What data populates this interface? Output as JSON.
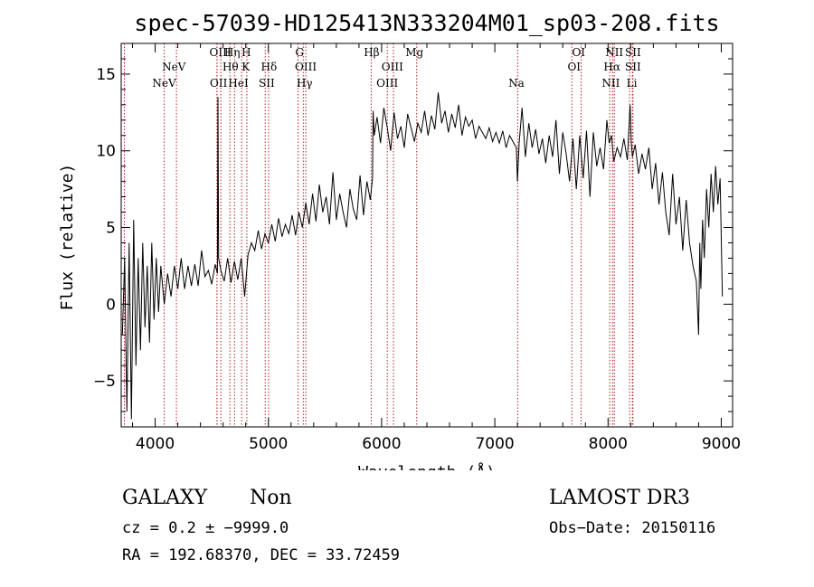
{
  "chart_data": {
    "type": "line",
    "title": "spec-57039-HD125413N333204M01_sp03-208.fits",
    "xlabel": "Wavelength (Å)",
    "ylabel": "Flux (relative)",
    "xlim": [
      3700,
      9100
    ],
    "ylim": [
      -8.0,
      17.0
    ],
    "xticks": [
      4000,
      5000,
      6000,
      7000,
      8000,
      9000
    ],
    "xtick_labels": [
      "4000",
      "5000",
      "6000",
      "7000",
      "8000",
      "9000"
    ],
    "yticks": [
      -5,
      0,
      5,
      10,
      15
    ],
    "ytick_labels": [
      "−5",
      "0",
      "5",
      "10",
      "15"
    ],
    "series": [
      {
        "name": "spectrum",
        "x": [
          3710,
          3730,
          3750,
          3770,
          3790,
          3810,
          3830,
          3850,
          3870,
          3890,
          3910,
          3930,
          3950,
          3970,
          3990,
          4010,
          4030,
          4050,
          4080,
          4110,
          4140,
          4170,
          4200,
          4230,
          4260,
          4290,
          4320,
          4350,
          4380,
          4410,
          4440,
          4470,
          4500,
          4530,
          4550,
          4555,
          4560,
          4580,
          4610,
          4640,
          4670,
          4700,
          4730,
          4760,
          4790,
          4820,
          4850,
          4880,
          4910,
          4940,
          4970,
          5000,
          5030,
          5060,
          5090,
          5120,
          5150,
          5180,
          5210,
          5240,
          5270,
          5300,
          5330,
          5360,
          5390,
          5420,
          5450,
          5480,
          5510,
          5540,
          5570,
          5600,
          5630,
          5660,
          5690,
          5720,
          5750,
          5780,
          5810,
          5840,
          5870,
          5900,
          5920,
          5925,
          5935,
          5960,
          5990,
          6020,
          6050,
          6080,
          6110,
          6140,
          6170,
          6200,
          6230,
          6260,
          6290,
          6320,
          6350,
          6380,
          6410,
          6440,
          6470,
          6500,
          6530,
          6560,
          6590,
          6620,
          6650,
          6680,
          6710,
          6740,
          6770,
          6800,
          6830,
          6860,
          6890,
          6920,
          6950,
          6980,
          7010,
          7040,
          7070,
          7100,
          7130,
          7160,
          7190,
          7200,
          7215,
          7240,
          7270,
          7300,
          7330,
          7360,
          7390,
          7420,
          7450,
          7480,
          7510,
          7540,
          7570,
          7600,
          7630,
          7660,
          7690,
          7720,
          7750,
          7780,
          7810,
          7840,
          7870,
          7900,
          7930,
          7960,
          7990,
          8010,
          8030,
          8050,
          8080,
          8110,
          8140,
          8170,
          8195,
          8205,
          8215,
          8240,
          8270,
          8300,
          8330,
          8360,
          8390,
          8420,
          8450,
          8480,
          8510,
          8540,
          8570,
          8600,
          8630,
          8660,
          8690,
          8720,
          8750,
          8780,
          8800,
          8810,
          8820,
          8835,
          8850,
          8870,
          8890,
          8910,
          8930,
          8950,
          8970,
          8990,
          9010
        ],
        "values": [
          -2.0,
          3.0,
          -7.0,
          4.0,
          -7.5,
          5.5,
          -4.0,
          3.0,
          -3.0,
          4.0,
          -1.5,
          2.5,
          -2.5,
          4.0,
          -1.0,
          3.0,
          -0.5,
          2.5,
          0.0,
          2.0,
          0.5,
          2.5,
          1.0,
          3.0,
          1.0,
          2.5,
          1.2,
          2.6,
          1.2,
          3.5,
          1.8,
          2.2,
          1.3,
          2.6,
          2.0,
          13.5,
          3.0,
          2.2,
          1.5,
          3.0,
          1.4,
          2.8,
          1.6,
          3.0,
          0.5,
          3.2,
          4.0,
          3.5,
          4.8,
          3.6,
          4.6,
          4.0,
          5.2,
          4.1,
          5.6,
          4.4,
          5.2,
          4.6,
          5.8,
          4.5,
          6.0,
          5.0,
          6.6,
          5.2,
          7.2,
          5.4,
          7.8,
          6.0,
          7.0,
          5.2,
          8.6,
          5.5,
          7.2,
          6.0,
          5.0,
          7.5,
          6.2,
          5.5,
          8.4,
          5.8,
          8.0,
          6.8,
          8.2,
          12.6,
          11.0,
          12.2,
          10.5,
          12.8,
          11.5,
          10.0,
          12.5,
          10.8,
          11.6,
          10.2,
          12.4,
          11.5,
          10.6,
          11.8,
          11.2,
          12.6,
          11.0,
          12.3,
          11.4,
          13.8,
          11.8,
          12.6,
          11.2,
          12.4,
          11.5,
          13.0,
          11.0,
          12.2,
          11.6,
          12.0,
          10.8,
          11.6,
          11.2,
          10.8,
          11.5,
          10.6,
          11.2,
          10.5,
          11.3,
          10.2,
          11.0,
          10.6,
          10.2,
          8.0,
          10.5,
          12.8,
          9.6,
          11.8,
          10.2,
          11.4,
          9.8,
          10.8,
          9.2,
          11.0,
          9.6,
          12.0,
          8.5,
          11.2,
          9.8,
          8.0,
          10.8,
          7.5,
          11.0,
          8.2,
          11.3,
          7.0,
          11.2,
          9.0,
          10.2,
          8.8,
          12.0,
          10.5,
          11.0,
          9.3,
          10.2,
          9.6,
          10.8,
          9.4,
          13.0,
          10.5,
          9.6,
          10.4,
          8.5,
          9.8,
          8.8,
          10.2,
          7.5,
          9.2,
          6.5,
          8.6,
          6.0,
          4.5,
          8.5,
          5.2,
          7.0,
          3.5,
          6.8,
          4.0,
          2.5,
          1.5,
          -2.0,
          4.0,
          1.0,
          5.5,
          3.0,
          7.5,
          5.0,
          8.5,
          6.0,
          9.0,
          6.5,
          8.2,
          0.5
        ]
      }
    ],
    "lines": [
      {
        "label": "NeV",
        "x": 3426,
        "label_x": 3426
      },
      {
        "label": "OII",
        "x": 3728,
        "label_x": 3728
      },
      {
        "label": "NeV",
        "x": 4080,
        "label_x": 4080
      },
      {
        "label": "NeV",
        "x": 4188,
        "label_x": 4188
      },
      {
        "label": "OII",
        "x": 4546,
        "label_x": 4546
      },
      {
        "label": "OIII",
        "x": 4546,
        "label_x": 4546
      },
      {
        "label": "Hθ",
        "x": 4580,
        "label_x": 4620
      },
      {
        "label": "Hη",
        "x": 4660,
        "label_x": 4660
      },
      {
        "label": "HeI",
        "x": 4701,
        "label_x": 4701
      },
      {
        "label": "H",
        "x": 4764,
        "label_x": 4800
      },
      {
        "label": "K",
        "x": 4810,
        "label_x": 4810
      },
      {
        "label": "SII",
        "x": 4972,
        "label_x": 4972
      },
      {
        "label": "Hδ",
        "x": 5002,
        "label_x": 5002
      },
      {
        "label": "G",
        "x": 5262,
        "label_x": 5262
      },
      {
        "label": "Hγ",
        "x": 5308,
        "label_x": 5308
      },
      {
        "label": "OIII",
        "x": 5330,
        "label_x": 5330
      },
      {
        "label": "Hβ",
        "x": 5908,
        "label_x": 5908
      },
      {
        "label": "OIII",
        "x": 6050,
        "label_x": 6050
      },
      {
        "label": "OIII",
        "x": 6105,
        "label_x": 6105
      },
      {
        "label": "Mg",
        "x": 6310,
        "label_x": 6310
      },
      {
        "label": "Na",
        "x": 7202,
        "label_x": 7202
      },
      {
        "label": "OI",
        "x": 7680,
        "label_x": 7680
      },
      {
        "label": "OI",
        "x": 7762,
        "label_x": 7762
      },
      {
        "label": "NII",
        "x": 8015,
        "label_x": 8015
      },
      {
        "label": "Hα",
        "x": 8040,
        "label_x": 8000
      },
      {
        "label": "NII",
        "x": 8055,
        "label_x": 8055
      },
      {
        "label": "SII",
        "x": 8190,
        "label_x": 8190
      },
      {
        "label": "SII",
        "x": 8215,
        "label_x": 8215
      },
      {
        "label": "Li",
        "x": 8220,
        "label_x": 8220
      }
    ],
    "line_labels": [
      {
        "text": "NeV",
        "x": 4080,
        "row": 3
      },
      {
        "text": "NeV",
        "x": 4165,
        "row": 2
      },
      {
        "text": "OII",
        "x": 4560,
        "row": 3
      },
      {
        "text": "OIII",
        "x": 4575,
        "row": 1
      },
      {
        "text": "Hθ",
        "x": 4665,
        "row": 2
      },
      {
        "text": "Hη",
        "x": 4680,
        "row": 1
      },
      {
        "text": "HeI",
        "x": 4735,
        "row": 3
      },
      {
        "text": "H",
        "x": 4805,
        "row": 1
      },
      {
        "text": "K",
        "x": 4800,
        "row": 2
      },
      {
        "text": "SII",
        "x": 4985,
        "row": 3
      },
      {
        "text": "Hδ",
        "x": 5005,
        "row": 2
      },
      {
        "text": "G",
        "x": 5275,
        "row": 1
      },
      {
        "text": "OIII",
        "x": 5330,
        "row": 2
      },
      {
        "text": "Hγ",
        "x": 5320,
        "row": 3
      },
      {
        "text": "Hβ",
        "x": 5912,
        "row": 1
      },
      {
        "text": "OIII",
        "x": 6095,
        "row": 2
      },
      {
        "text": "OIII",
        "x": 6050,
        "row": 3
      },
      {
        "text": "Mg",
        "x": 6290,
        "row": 1
      },
      {
        "text": "Na",
        "x": 7190,
        "row": 3
      },
      {
        "text": "OI",
        "x": 7740,
        "row": 1
      },
      {
        "text": "OI",
        "x": 7700,
        "row": 2
      },
      {
        "text": "NII",
        "x": 8055,
        "row": 1
      },
      {
        "text": "Hα",
        "x": 8035,
        "row": 2
      },
      {
        "text": "NII",
        "x": 8025,
        "row": 3
      },
      {
        "text": "SII",
        "x": 8220,
        "row": 1
      },
      {
        "text": "SII",
        "x": 8220,
        "row": 2
      },
      {
        "text": "Li",
        "x": 8210,
        "row": 3
      }
    ],
    "line_color": "#b22222",
    "trace_color": "#000000"
  },
  "footer": {
    "class": "GALAXY",
    "subclass": "Non",
    "survey": "LAMOST DR3",
    "cz": "cz = 0.2 ± −9999.0",
    "obs_date": "Obs−Date: 20150116",
    "radec": "RA = 192.68370, DEC =  33.72459"
  }
}
